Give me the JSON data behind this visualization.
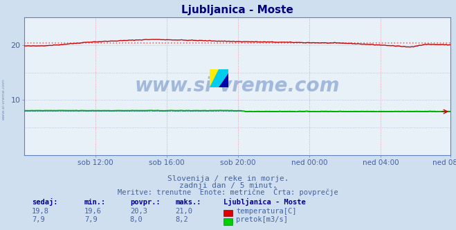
{
  "title": "Ljubljanica - Moste",
  "bg_color": "#d0dff0",
  "plot_bg_color": "#e8f0f8",
  "grid_color_v": "#c8a0c0",
  "grid_color_h": "#c0c0e0",
  "title_color": "#000080",
  "axis_label_color": "#4060a0",
  "text_color": "#4060a0",
  "ylim": [
    0,
    25
  ],
  "yticks": [
    10,
    20
  ],
  "ytick_labels": [
    "10",
    "20"
  ],
  "n_points": 288,
  "temp_avg": 20.3,
  "flow_avg": 8.0,
  "temp_color": "#cc0000",
  "flow_color": "#00bb00",
  "height_color": "#0000cc",
  "avg_line_color": "#ff6060",
  "flow_avg_color": "#60cc60",
  "watermark_text": "www.si-vreme.com",
  "watermark_color": "#2255aa",
  "watermark_alpha": 0.35,
  "sidewater_color": "#4070b0",
  "subtitle1": "Slovenija / reke in morje.",
  "subtitle2": "zadnji dan / 5 minut.",
  "subtitle3": "Meritve: trenutne  Enote: metrične  Črta: povprečje",
  "legend_title": "Ljubljanica - Moste",
  "label_sedaj": "sedaj:",
  "label_min": "min.:",
  "label_povpr": "povpr.:",
  "label_maks": "maks.:",
  "label_temp": "temperatura[C]",
  "label_flow": "pretok[m3/s]",
  "xtick_labels": [
    "sob 12:00",
    "sob 16:00",
    "sob 20:00",
    "ned 00:00",
    "ned 04:00",
    "ned 08:00"
  ],
  "xtick_positions": [
    48,
    96,
    144,
    192,
    240,
    287
  ],
  "temp_vals": [
    "19,8",
    "19,6",
    "20,3",
    "21,0"
  ],
  "flow_vals": [
    "7,9",
    "7,9",
    "8,0",
    "8,2"
  ]
}
